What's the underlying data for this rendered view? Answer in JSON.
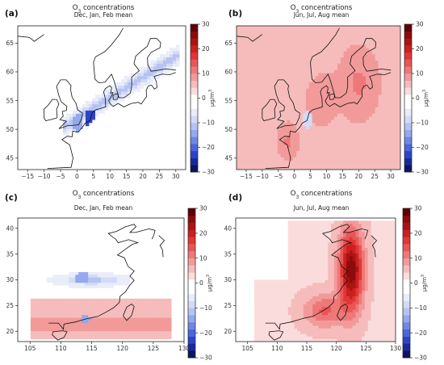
{
  "figure": {
    "colorbar": {
      "ticks": [
        30,
        20,
        10,
        0,
        -10,
        -20,
        -30
      ],
      "unit_base": "μg/m",
      "unit_sup": "3",
      "range": [
        -30,
        30
      ],
      "n_levels": 20,
      "colors": [
        "#0b1560",
        "#1a2a9a",
        "#2e44c8",
        "#4c66dc",
        "#6f87e6",
        "#94a8ee",
        "#b6c3f2",
        "#d2daf6",
        "#e9edf9",
        "#ffffff",
        "#ffffff",
        "#fbdcdc",
        "#f6bcbc",
        "#f29a9a",
        "#ee7878",
        "#e85656",
        "#e23636",
        "#cc2020",
        "#aa1414",
        "#8c0c0c",
        "#600000"
      ]
    }
  },
  "chart_data": [
    {
      "type": "heatmap",
      "panel_label": "(a)",
      "title_prefix": "O",
      "title_sub": "3",
      "title_suffix": " concentrations",
      "subtitle": "Dec, Jan, Feb mean",
      "region": "Europe",
      "xlim": [
        -18,
        33
      ],
      "ylim": [
        43,
        68
      ],
      "x_ticks": [
        -15,
        -10,
        -5,
        0,
        5,
        10,
        15,
        20,
        25,
        30
      ],
      "y_ticks": [
        45,
        50,
        55,
        60,
        65
      ],
      "values_note_range": [
        -30,
        0
      ]
    },
    {
      "type": "heatmap",
      "panel_label": "(b)",
      "title_prefix": "O",
      "title_sub": "3",
      "title_suffix": " concentrations",
      "subtitle": "Jun, Jul, Aug mean",
      "region": "Europe",
      "xlim": [
        -18,
        33
      ],
      "ylim": [
        43,
        68
      ],
      "x_ticks": [
        -15,
        -10,
        -5,
        0,
        5,
        10,
        15,
        20,
        25,
        30
      ],
      "y_ticks": [
        45,
        50,
        55,
        60,
        65
      ],
      "values_note_range": [
        -10,
        15
      ]
    },
    {
      "type": "heatmap",
      "panel_label": "(c)",
      "title_prefix": "O",
      "title_sub": "3",
      "title_suffix": " concentrations",
      "subtitle": "Dec, Jan, Feb mean",
      "region": "East China",
      "xlim": [
        103,
        130
      ],
      "ylim": [
        18,
        42
      ],
      "x_ticks": [
        105,
        110,
        115,
        120,
        125,
        130
      ],
      "y_ticks": [
        20,
        25,
        30,
        35,
        40
      ],
      "values_note_range": [
        -15,
        12
      ]
    },
    {
      "type": "heatmap",
      "panel_label": "(d)",
      "title_prefix": "O",
      "title_sub": "3",
      "title_suffix": " concentrations",
      "subtitle": "Jun, Jul, Aug mean",
      "region": "East China",
      "xlim": [
        103,
        130
      ],
      "ylim": [
        18,
        42
      ],
      "x_ticks": [
        105,
        110,
        115,
        120,
        125,
        130
      ],
      "y_ticks": [
        20,
        25,
        30,
        35,
        40
      ],
      "values_note_range": [
        0,
        30
      ]
    }
  ]
}
